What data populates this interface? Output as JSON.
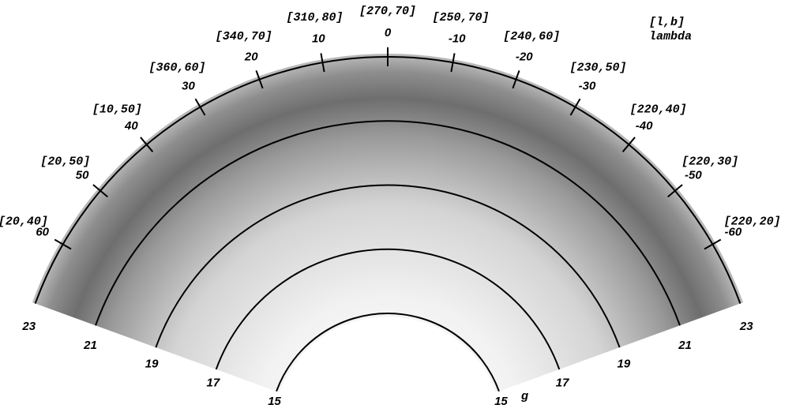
{
  "chart_data": {
    "type": "polar",
    "x_label": "lambda",
    "x2_label": "[l,b]",
    "y_label": "g",
    "xlim": [
      70,
      -70
    ],
    "xticks": [
      60,
      50,
      40,
      30,
      20,
      10,
      0,
      -10,
      -20,
      -30,
      -40,
      -50,
      -60
    ],
    "x2ticks": [
      "[20,40]",
      "[20,50]",
      "[10,50]",
      "[360,60]",
      "[340,70]",
      "[310,80]",
      "[270,70]",
      "[250,70]",
      "[240,60]",
      "[230,50]",
      "[220,40]",
      "[220,30]",
      "[220,20]"
    ],
    "ylim": [
      15,
      23
    ],
    "yticks": [
      15,
      17,
      19,
      21,
      23
    ]
  }
}
